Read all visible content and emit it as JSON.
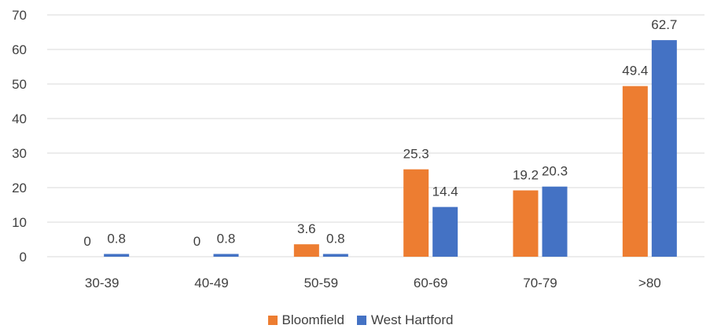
{
  "chart_data": {
    "type": "bar",
    "title": "",
    "xlabel": "",
    "ylabel": "",
    "categories": [
      "30-39",
      "40-49",
      "50-59",
      "60-69",
      "70-79",
      ">80"
    ],
    "series": [
      {
        "name": "Bloomfield",
        "color": "#ED7D31",
        "values": [
          0,
          0,
          3.6,
          25.3,
          19.2,
          49.4
        ]
      },
      {
        "name": "West Hartford",
        "color": "#4472C4",
        "values": [
          0.8,
          0.8,
          0.8,
          14.4,
          20.3,
          62.7
        ]
      }
    ],
    "ylim": [
      0,
      70
    ],
    "yticks": [
      0,
      10,
      20,
      30,
      40,
      50,
      60,
      70
    ],
    "grid": true,
    "legend_position": "bottom"
  }
}
